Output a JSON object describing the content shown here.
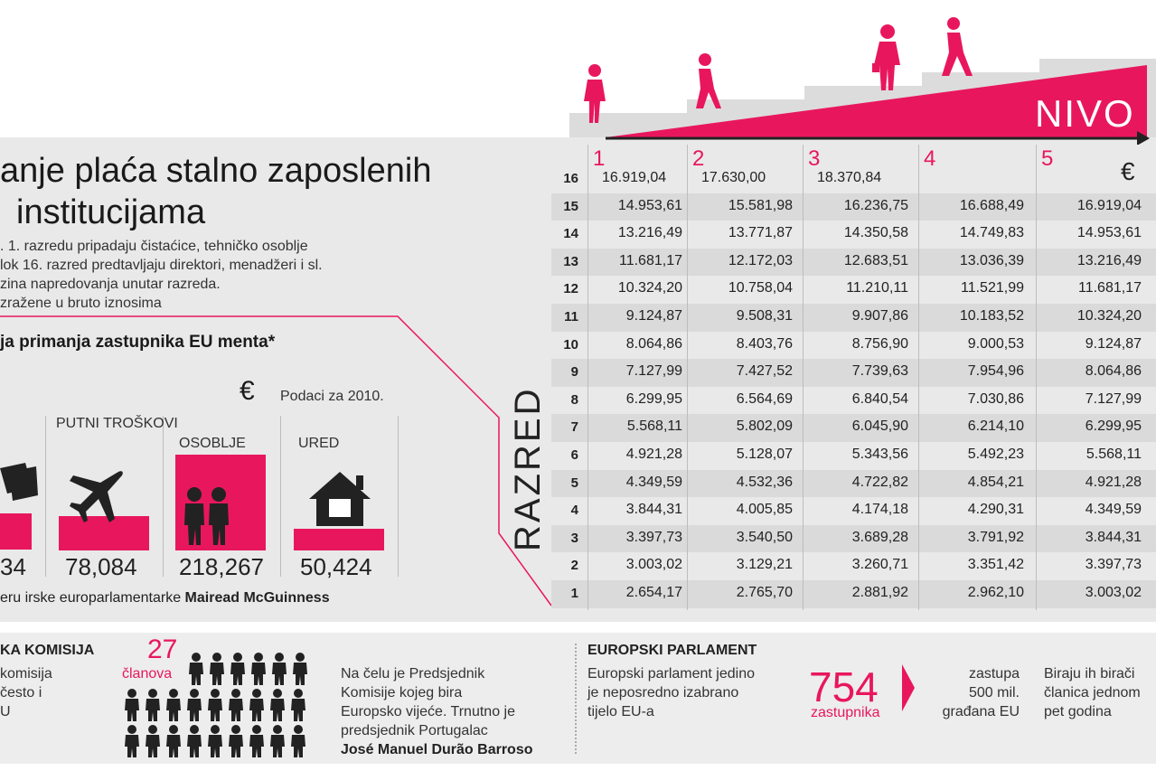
{
  "colors": {
    "accent": "#e8175d",
    "panel": "#e9e9e9",
    "ink": "#1a1a1a"
  },
  "title": {
    "line1": "anje plaća stalno zaposlenih",
    "line2": "institucijama"
  },
  "description": {
    "line1": ". 1. razredu pripadaju čistaćice, tehničko osoblje",
    "line2": "lok 16. razred predtavljaju direktori, menadžeri i sl.",
    "line3": "zina napredovanja unutar razreda.",
    "line4": "zražene u bruto iznosima"
  },
  "chart_data": [
    {
      "type": "table",
      "title": "anje plaća stalno zaposlenih institucijama",
      "unit": "€",
      "column_label": "NIVO",
      "row_label": "RAZRED",
      "columns": [
        "1",
        "2",
        "3",
        "4",
        "5"
      ],
      "rows": [
        {
          "razred": "16",
          "values": [
            "16.919,04",
            "17.630,00",
            "18.370,84",
            "",
            ""
          ]
        },
        {
          "razred": "15",
          "values": [
            "14.953,61",
            "15.581,98",
            "16.236,75",
            "16.688,49",
            "16.919,04"
          ]
        },
        {
          "razred": "14",
          "values": [
            "13.216,49",
            "13.771,87",
            "14.350,58",
            "14.749,83",
            "14.953,61"
          ]
        },
        {
          "razred": "13",
          "values": [
            "11.681,17",
            "12.172,03",
            "12.683,51",
            "13.036,39",
            "13.216,49"
          ]
        },
        {
          "razred": "12",
          "values": [
            "10.324,20",
            "10.758,04",
            "11.210,11",
            "11.521,99",
            "11.681,17"
          ]
        },
        {
          "razred": "11",
          "values": [
            "9.124,87",
            "9.508,31",
            "9.907,86",
            "10.183,52",
            "10.324,20"
          ]
        },
        {
          "razred": "10",
          "values": [
            "8.064,86",
            "8.403,76",
            "8.756,90",
            "9.000,53",
            "9.124,87"
          ]
        },
        {
          "razred": "9",
          "values": [
            "7.127,99",
            "7.427,52",
            "7.739,63",
            "7.954,96",
            "8.064,86"
          ]
        },
        {
          "razred": "8",
          "values": [
            "6.299,95",
            "6.564,69",
            "6.840,54",
            "7.030,86",
            "7.127,99"
          ]
        },
        {
          "razred": "7",
          "values": [
            "5.568,11",
            "5.802,09",
            "6.045,90",
            "6.214,10",
            "6.299,95"
          ]
        },
        {
          "razred": "6",
          "values": [
            "4.921,28",
            "5.128,07",
            "5.343,56",
            "5.492,23",
            "5.568,11"
          ]
        },
        {
          "razred": "5",
          "values": [
            "4.349,59",
            "4.532,36",
            "4.722,82",
            "4.854,21",
            "4.921,28"
          ]
        },
        {
          "razred": "4",
          "values": [
            "3.844,31",
            "4.005,85",
            "4.174,18",
            "4.290,31",
            "4.349,59"
          ]
        },
        {
          "razred": "3",
          "values": [
            "3.397,73",
            "3.540,50",
            "3.689,28",
            "3.791,92",
            "3.844,31"
          ]
        },
        {
          "razred": "2",
          "values": [
            "3.003,02",
            "3.129,21",
            "3.260,71",
            "3.351,42",
            "3.397,73"
          ]
        },
        {
          "razred": "1",
          "values": [
            "2.654,17",
            "2.765,70",
            "2.881,92",
            "2.962,10",
            "3.003,02"
          ]
        }
      ]
    },
    {
      "type": "bar",
      "title": "ja primanja zastupnika EU menta*",
      "unit": "€",
      "note": "Podaci za 2010.",
      "categories": [
        "",
        "PUTNI TROŠKOVI",
        "OSOBLJE",
        "URED"
      ],
      "value_labels": [
        "34",
        "78,084",
        "218,267",
        "50,424"
      ],
      "values": [
        null,
        78084,
        218267,
        50424
      ],
      "source": {
        "prefix": "eru irske europarlamentarke",
        "name": "Mairead McGuinness"
      }
    }
  ],
  "bottom": {
    "komisija": {
      "heading": "KA KOMISIJA",
      "text_lines": [
        "komisija",
        "često i",
        "U"
      ],
      "count": "27",
      "count_label": "članova",
      "info_lines": [
        "Na čelu je Predsjednik",
        "Komisije kojeg bira",
        "Europsko vijeće. Trnutno je",
        "predsjednik Portugalac"
      ],
      "president": "José Manuel Durão Barroso",
      "members": 27
    },
    "parlament": {
      "heading": "EUROPSKI PARLAMENT",
      "text_lines": [
        "Europski parlament jedino",
        "je neposredno izabrano",
        "tijelo EU-a"
      ],
      "count": "754",
      "count_label": "zastupnika",
      "represents_lines": [
        "zastupa",
        "500 mil.",
        "građana EU"
      ],
      "elect_lines": [
        "Biraju ih birači",
        "članica jednom",
        "pet godina"
      ]
    }
  }
}
